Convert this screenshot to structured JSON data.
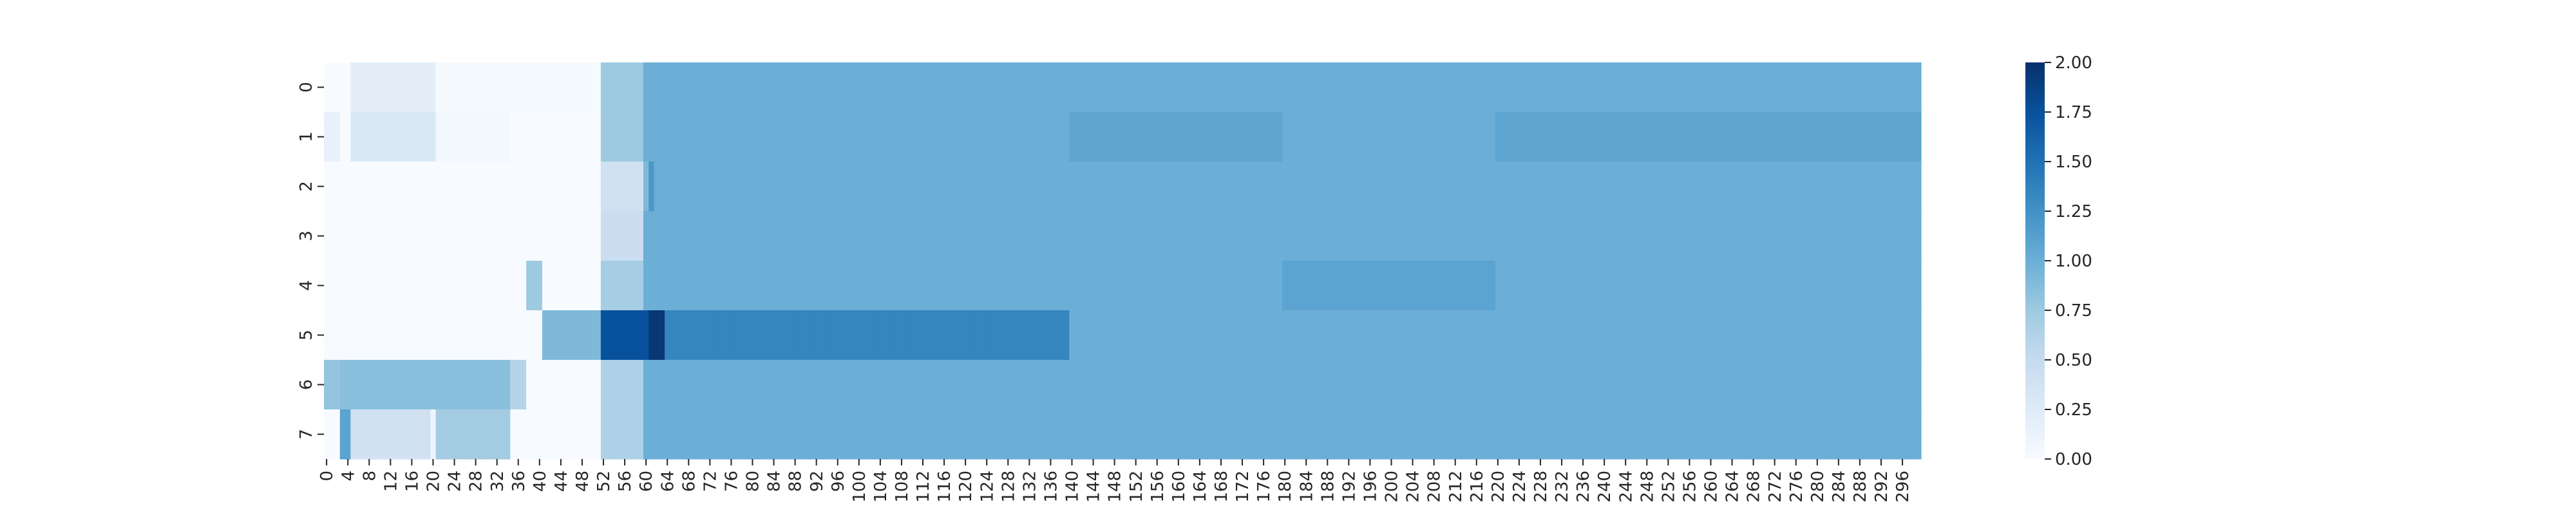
{
  "chart_data": {
    "type": "heatmap",
    "title": "",
    "xlabel": "",
    "ylabel": "",
    "colormap": "Blues",
    "vmin": 0.0,
    "vmax": 2.0,
    "n_rows": 8,
    "n_cols": 300,
    "y_tick_labels": [
      "0",
      "1",
      "2",
      "3",
      "4",
      "5",
      "6",
      "7"
    ],
    "x_tick_labels": [
      "0",
      "4",
      "8",
      "12",
      "16",
      "20",
      "24",
      "28",
      "32",
      "36",
      "40",
      "44",
      "48",
      "52",
      "56",
      "60",
      "64",
      "68",
      "72",
      "76",
      "80",
      "84",
      "88",
      "92",
      "96",
      "100",
      "104",
      "108",
      "112",
      "116",
      "120",
      "124",
      "128",
      "132",
      "136",
      "140",
      "144",
      "148",
      "152",
      "156",
      "160",
      "164",
      "168",
      "172",
      "176",
      "180",
      "184",
      "188",
      "192",
      "196",
      "200",
      "204",
      "208",
      "212",
      "216",
      "220",
      "224",
      "228",
      "232",
      "236",
      "240",
      "244",
      "248",
      "252",
      "256",
      "260",
      "264",
      "268",
      "272",
      "276",
      "280",
      "284",
      "288",
      "292",
      "296"
    ],
    "colorbar_ticks": [
      "0.00",
      "0.25",
      "0.50",
      "0.75",
      "1.00",
      "1.25",
      "1.50",
      "1.75",
      "2.00"
    ],
    "default_value": 1.0,
    "rows": [
      [
        [
          0,
          5,
          0.0
        ],
        [
          5,
          21,
          0.2
        ],
        [
          21,
          52,
          0.02
        ],
        [
          52,
          60,
          0.75
        ]
      ],
      [
        [
          0,
          3,
          0.15
        ],
        [
          3,
          5,
          0.0
        ],
        [
          5,
          21,
          0.3
        ],
        [
          21,
          35,
          0.05
        ],
        [
          35,
          52,
          0.0
        ],
        [
          52,
          60,
          0.75
        ],
        [
          140,
          180,
          1.08
        ],
        [
          220,
          300,
          1.08
        ]
      ],
      [
        [
          0,
          52,
          0.0
        ],
        [
          52,
          60,
          0.4
        ],
        [
          60,
          61,
          0.9
        ],
        [
          61,
          62,
          1.2
        ]
      ],
      [
        [
          0,
          52,
          0.0
        ],
        [
          52,
          60,
          0.45
        ]
      ],
      [
        [
          0,
          38,
          0.0
        ],
        [
          38,
          41,
          0.75
        ],
        [
          41,
          52,
          0.0
        ],
        [
          52,
          60,
          0.7
        ],
        [
          180,
          220,
          1.1
        ]
      ],
      [
        [
          0,
          41,
          0.0
        ],
        [
          41,
          52,
          0.9
        ],
        [
          52,
          61,
          1.75
        ],
        [
          61,
          64,
          1.95
        ],
        [
          64,
          140,
          1.35
        ]
      ],
      [
        [
          0,
          3,
          0.8
        ],
        [
          3,
          35,
          0.85
        ],
        [
          35,
          38,
          0.6
        ],
        [
          38,
          52,
          0.0
        ],
        [
          52,
          60,
          0.65
        ]
      ],
      [
        [
          0,
          3,
          0.0
        ],
        [
          3,
          5,
          1.1
        ],
        [
          5,
          20,
          0.4
        ],
        [
          20,
          21,
          0.1
        ],
        [
          21,
          35,
          0.72
        ],
        [
          35,
          52,
          0.0
        ],
        [
          52,
          60,
          0.65
        ]
      ]
    ]
  }
}
